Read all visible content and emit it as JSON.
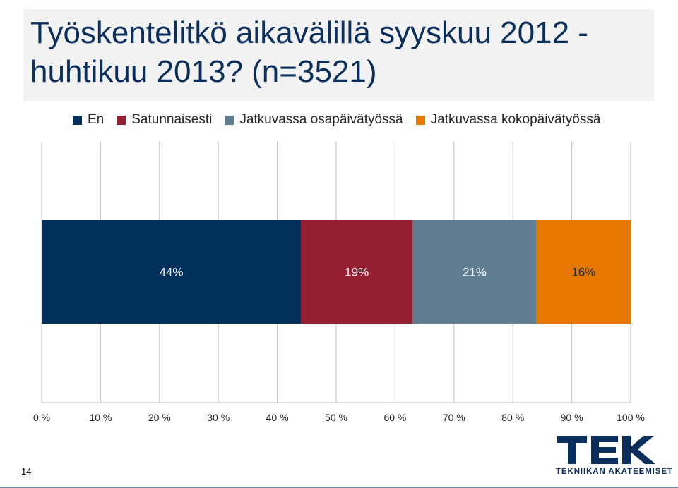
{
  "title": "Työskentelitkö aikavälillä syyskuu 2012 - huhtikuu 2013? (n=3521)",
  "colors": {
    "en": "#002f5c",
    "satunnaisesti": "#951f33",
    "osapaiva": "#5f7e92",
    "kokopaiva": "#e67800",
    "brand": "#0a2f5c"
  },
  "chart_data": {
    "type": "bar",
    "orientation": "horizontal-stacked-100",
    "categories": [
      ""
    ],
    "series": [
      {
        "name": "En",
        "values": [
          44
        ],
        "label": "44%",
        "color": "#002f5c"
      },
      {
        "name": "Satunnaisesti",
        "values": [
          19
        ],
        "label": "19%",
        "color": "#951f33"
      },
      {
        "name": "Jatkuvassa osapäivätyössä",
        "values": [
          21
        ],
        "label": "21%",
        "color": "#5f7e92"
      },
      {
        "name": "Jatkuvassa kokopäivätyössä",
        "values": [
          16
        ],
        "label": "16%",
        "color": "#e67800"
      }
    ],
    "x_ticks": [
      "0 %",
      "10 %",
      "20 %",
      "30 %",
      "40 %",
      "50 %",
      "60 %",
      "70 %",
      "80 %",
      "90 %",
      "100 %"
    ],
    "xlim": [
      0,
      100
    ],
    "grid": true,
    "legend_position": "top"
  },
  "footer": {
    "page_number": "14",
    "logo_text": "TEK",
    "logo_caption": "TEKNIIKAN AKATEEMISET"
  }
}
